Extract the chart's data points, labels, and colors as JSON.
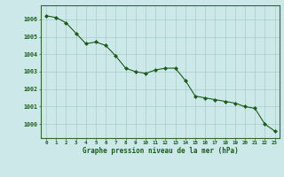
{
  "x": [
    0,
    1,
    2,
    3,
    4,
    5,
    6,
    7,
    8,
    9,
    10,
    11,
    12,
    13,
    14,
    15,
    16,
    17,
    18,
    19,
    20,
    21,
    22,
    23
  ],
  "y": [
    1006.2,
    1006.1,
    1005.8,
    1005.2,
    1004.6,
    1004.7,
    1004.5,
    1003.9,
    1003.2,
    1003.0,
    1002.9,
    1003.1,
    1003.2,
    1003.2,
    1002.5,
    1001.6,
    1001.5,
    1001.4,
    1001.3,
    1001.2,
    1001.0,
    1000.9,
    1000.0,
    999.6
  ],
  "line_color": "#1a5c1a",
  "marker_color": "#1a5c1a",
  "bg_color": "#cce8e8",
  "grid_color": "#aacccc",
  "axis_label_color": "#1a5c1a",
  "xlabel": "Graphe pression niveau de la mer (hPa)",
  "ylim": [
    999.2,
    1006.8
  ],
  "xlim": [
    -0.5,
    23.5
  ],
  "yticks": [
    1000,
    1001,
    1002,
    1003,
    1004,
    1005,
    1006
  ],
  "xticks": [
    0,
    1,
    2,
    3,
    4,
    5,
    6,
    7,
    8,
    9,
    10,
    11,
    12,
    13,
    14,
    15,
    16,
    17,
    18,
    19,
    20,
    21,
    22,
    23
  ],
  "xtick_labels": [
    "0",
    "1",
    "2",
    "3",
    "4",
    "5",
    "6",
    "7",
    "8",
    "9",
    "10",
    "11",
    "12",
    "13",
    "14",
    "15",
    "16",
    "17",
    "18",
    "19",
    "20",
    "21",
    "22",
    "23"
  ],
  "border_color": "#336633",
  "tick_color": "#1a5c1a"
}
